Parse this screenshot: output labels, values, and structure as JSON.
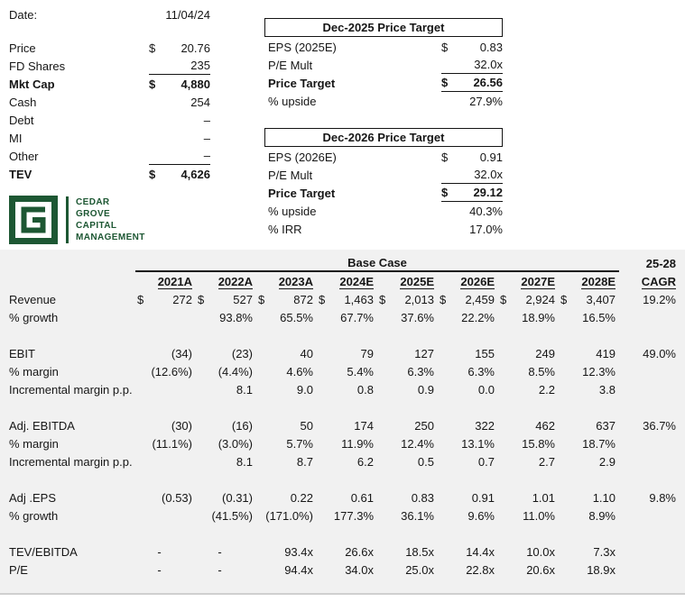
{
  "colors": {
    "brand_green": "#1d5733",
    "sheet_bg": "#f1f1f1"
  },
  "summary": {
    "date_label": "Date:",
    "date_value": "11/04/24",
    "rows": [
      {
        "label": "Price",
        "dollar": "$",
        "value": "20.76"
      },
      {
        "label": "FD Shares",
        "dollar": "",
        "value": "235",
        "rule_below": true
      },
      {
        "label": "Mkt Cap",
        "dollar": "$",
        "value": "4,880",
        "bold": true
      },
      {
        "label": "Cash",
        "dollar": "",
        "value": "254"
      },
      {
        "label": "Debt",
        "dollar": "",
        "value": "–"
      },
      {
        "label": "MI",
        "dollar": "",
        "value": "–"
      },
      {
        "label": "Other",
        "dollar": "",
        "value": "–",
        "rule_below": true
      },
      {
        "label": "TEV",
        "dollar": "$",
        "value": "4,626",
        "bold": true
      }
    ]
  },
  "price_targets": [
    {
      "title": "Dec-2025 Price Target",
      "rows": [
        {
          "label": "EPS (2025E)",
          "dollar": "$",
          "value": "0.83"
        },
        {
          "label": "P/E Mult",
          "dollar": "",
          "value": "32.0x",
          "rule_below": true
        },
        {
          "label": "Price Target",
          "dollar": "$",
          "value": "26.56",
          "bold": true,
          "rule_below": true
        },
        {
          "label": "% upside",
          "dollar": "",
          "value": "27.9%"
        }
      ]
    },
    {
      "title": "Dec-2026 Price Target",
      "rows": [
        {
          "label": "EPS (2026E)",
          "dollar": "$",
          "value": "0.91"
        },
        {
          "label": "P/E Mult",
          "dollar": "",
          "value": "32.0x",
          "rule_below": true
        },
        {
          "label": "Price Target",
          "dollar": "$",
          "value": "29.12",
          "bold": true,
          "rule_below": true
        },
        {
          "label": "% upside",
          "dollar": "",
          "value": "40.3%"
        },
        {
          "label": "% IRR",
          "dollar": "",
          "value": "17.0%"
        }
      ]
    }
  ],
  "logo": {
    "lines": [
      "CEDAR",
      "GROVE",
      "CAPITAL",
      "MANAGEMENT"
    ]
  },
  "table": {
    "group_label": "Base Case",
    "cagr_group_label": "25-28",
    "cagr_label": "CAGR",
    "columns": [
      "2021A",
      "2022A",
      "2023A",
      "2024E",
      "2025E",
      "2026E",
      "2027E",
      "2028E"
    ],
    "rows": [
      {
        "label": "Revenue",
        "dollar": true,
        "cells": [
          "272",
          "527",
          "872",
          "1,463",
          "2,013",
          "2,459",
          "2,924",
          "3,407"
        ],
        "cagr": "19.2%"
      },
      {
        "label": "% growth",
        "cells": [
          "",
          "93.8%",
          "65.5%",
          "67.7%",
          "37.6%",
          "22.2%",
          "18.9%",
          "16.5%"
        ],
        "cagr": ""
      },
      {
        "spacer": true
      },
      {
        "label": "EBIT",
        "cells": [
          "(34)",
          "(23)",
          "40",
          "79",
          "127",
          "155",
          "249",
          "419"
        ],
        "cagr": "49.0%"
      },
      {
        "label": "% margin",
        "cells": [
          "(12.6%)",
          "(4.4%)",
          "4.6%",
          "5.4%",
          "6.3%",
          "6.3%",
          "8.5%",
          "12.3%"
        ],
        "cagr": ""
      },
      {
        "label": "Incremental margin p.p.",
        "cells": [
          "",
          "8.1",
          "9.0",
          "0.8",
          "0.9",
          "0.0",
          "2.2",
          "3.8"
        ],
        "cagr": ""
      },
      {
        "spacer": true
      },
      {
        "label": "Adj. EBITDA",
        "cells": [
          "(30)",
          "(16)",
          "50",
          "174",
          "250",
          "322",
          "462",
          "637"
        ],
        "cagr": "36.7%"
      },
      {
        "label": "% margin",
        "cells": [
          "(11.1%)",
          "(3.0%)",
          "5.7%",
          "11.9%",
          "12.4%",
          "13.1%",
          "15.8%",
          "18.7%"
        ],
        "cagr": ""
      },
      {
        "label": "Incremental margin p.p.",
        "cells": [
          "",
          "8.1",
          "8.7",
          "6.2",
          "0.5",
          "0.7",
          "2.7",
          "2.9"
        ],
        "cagr": ""
      },
      {
        "spacer": true
      },
      {
        "label": "Adj .EPS",
        "cells": [
          "(0.53)",
          "(0.31)",
          "0.22",
          "0.61",
          "0.83",
          "0.91",
          "1.01",
          "1.10"
        ],
        "cagr": "9.8%"
      },
      {
        "label": "% growth",
        "cells": [
          "",
          "(41.5%)",
          "(171.0%)",
          "177.3%",
          "36.1%",
          "9.6%",
          "11.0%",
          "8.9%"
        ],
        "cagr": ""
      },
      {
        "spacer": true
      },
      {
        "label": "TEV/EBITDA",
        "cells": [
          "-",
          "-",
          "93.4x",
          "26.6x",
          "18.5x",
          "14.4x",
          "10.0x",
          "7.3x"
        ],
        "cagr": ""
      },
      {
        "label": "P/E",
        "cells": [
          "-",
          "-",
          "94.4x",
          "34.0x",
          "25.0x",
          "22.8x",
          "20.6x",
          "18.9x"
        ],
        "cagr": ""
      }
    ]
  }
}
